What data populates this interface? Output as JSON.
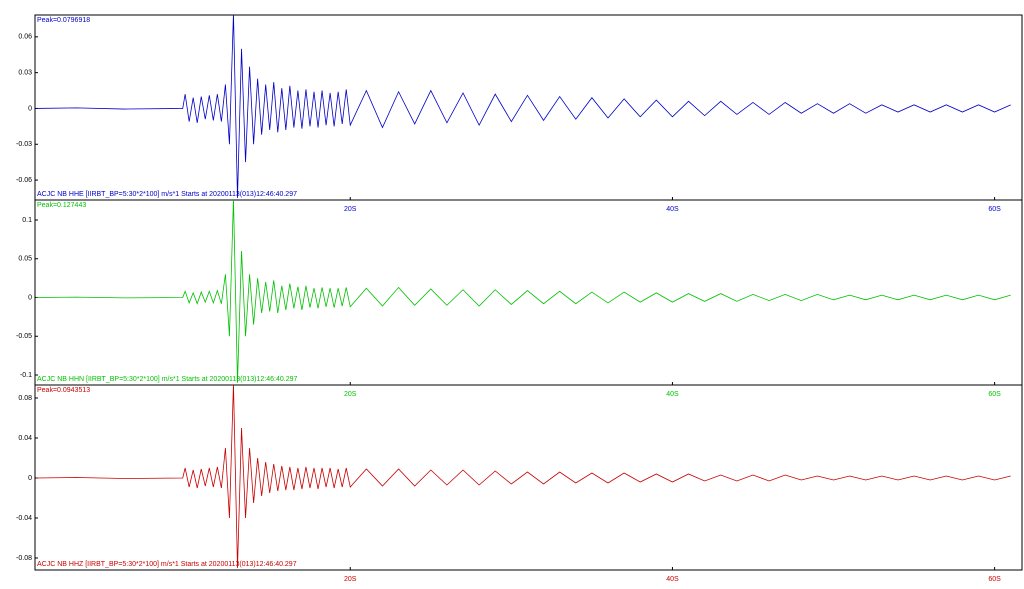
{
  "chart_data": [
    {
      "type": "line",
      "title": "Peak=0.0796918",
      "subtitle": "ACJC NB HHE  [IIRBT_BP=5:30*2*100] m/s*1 Starts at 20200113(013)12:46:40.297",
      "color": "#0000c8",
      "x": [
        0.5,
        3,
        6,
        9.6,
        9.75,
        10,
        10.25,
        10.5,
        10.75,
        11,
        11.25,
        11.5,
        11.75,
        12,
        12.25,
        12.5,
        12.75,
        13,
        13.25,
        13.5,
        13.75,
        14,
        14.25,
        14.5,
        14.75,
        15,
        15.25,
        15.5,
        15.75,
        16,
        16.25,
        16.5,
        16.75,
        17,
        17.25,
        17.5,
        17.75,
        18,
        18.25,
        18.5,
        18.75,
        19,
        19.25,
        19.5,
        19.75,
        20,
        21,
        22,
        23,
        24,
        25,
        26,
        27,
        28,
        29,
        30,
        31,
        32,
        33,
        34,
        35,
        36,
        37,
        38,
        39,
        40,
        41,
        42,
        43,
        44,
        45,
        46,
        47,
        48,
        49,
        50,
        51,
        52,
        53,
        54,
        55,
        56,
        57,
        58,
        59,
        60,
        61
      ],
      "values": [
        0,
        0.0005,
        -0.0005,
        0,
        0.012,
        -0.011,
        0.009,
        -0.012,
        0.01,
        -0.009,
        0.011,
        -0.01,
        0.012,
        -0.011,
        0.02,
        -0.03,
        0.0796918,
        -0.075,
        0.05,
        -0.045,
        0.035,
        -0.03,
        0.025,
        -0.022,
        0.02,
        -0.018,
        0.022,
        -0.02,
        0.017,
        -0.018,
        0.019,
        -0.016,
        0.015,
        -0.017,
        0.016,
        -0.015,
        0.014,
        -0.016,
        0.015,
        -0.014,
        0.013,
        -0.015,
        0.014,
        -0.013,
        0.016,
        -0.014,
        0.015,
        -0.016,
        0.014,
        -0.013,
        0.015,
        -0.012,
        0.013,
        -0.014,
        0.012,
        -0.011,
        0.011,
        -0.01,
        0.01,
        -0.009,
        0.009,
        -0.008,
        0.008,
        -0.007,
        0.007,
        -0.007,
        0.006,
        -0.006,
        0.006,
        -0.005,
        0.005,
        -0.005,
        0.005,
        -0.004,
        0.004,
        -0.004,
        0.004,
        -0.004,
        0.003,
        -0.003,
        0.003,
        -0.003,
        0.003,
        -0.003,
        0.003,
        -0.003,
        0.003
      ],
      "xlim": [
        0.43,
        61.7
      ],
      "xticks": [
        {
          "value": 20,
          "label": "20S"
        },
        {
          "value": 40,
          "label": "40S"
        },
        {
          "value": 60,
          "label": "60S"
        }
      ],
      "ylim": [
        -0.0767,
        0.0783
      ],
      "yticks": [
        -0.06,
        -0.03,
        0,
        0.03,
        0.06
      ]
    },
    {
      "type": "line",
      "title": "Peak=0.127443",
      "subtitle": "ACJC NB HHN  [IIRBT_BP=5:30*2*100] m/s*1 Starts at 20200113(013)12:46:40.297",
      "color": "#00c000",
      "x": [
        0.5,
        3,
        6,
        9.6,
        9.75,
        10,
        10.25,
        10.5,
        10.75,
        11,
        11.25,
        11.5,
        11.75,
        12,
        12.25,
        12.5,
        12.75,
        13,
        13.25,
        13.5,
        13.75,
        14,
        14.25,
        14.5,
        14.75,
        15,
        15.25,
        15.5,
        15.75,
        16,
        16.25,
        16.5,
        16.75,
        17,
        17.25,
        17.5,
        17.75,
        18,
        18.25,
        18.5,
        18.75,
        19,
        19.25,
        19.5,
        19.75,
        20,
        21,
        22,
        23,
        24,
        25,
        26,
        27,
        28,
        29,
        30,
        31,
        32,
        33,
        34,
        35,
        36,
        37,
        38,
        39,
        40,
        41,
        42,
        43,
        44,
        45,
        46,
        47,
        48,
        49,
        50,
        51,
        52,
        53,
        54,
        55,
        56,
        57,
        58,
        59,
        60,
        61
      ],
      "values": [
        0,
        0.0005,
        -0.0005,
        0,
        0.008,
        -0.007,
        0.006,
        -0.008,
        0.007,
        -0.006,
        0.008,
        -0.007,
        0.009,
        -0.008,
        0.03,
        -0.05,
        0.127443,
        -0.11,
        0.06,
        -0.05,
        0.03,
        -0.035,
        0.025,
        -0.02,
        0.02,
        -0.018,
        0.022,
        -0.02,
        0.015,
        -0.016,
        0.018,
        -0.014,
        0.014,
        -0.016,
        0.015,
        -0.013,
        0.012,
        -0.014,
        0.013,
        -0.012,
        0.012,
        -0.013,
        0.012,
        -0.011,
        0.013,
        -0.012,
        0.012,
        -0.011,
        0.013,
        -0.01,
        0.011,
        -0.01,
        0.01,
        -0.011,
        0.01,
        -0.009,
        0.009,
        -0.008,
        0.008,
        -0.008,
        0.007,
        -0.007,
        0.007,
        -0.006,
        0.006,
        -0.006,
        0.005,
        -0.005,
        0.005,
        -0.005,
        0.004,
        -0.004,
        0.004,
        -0.004,
        0.004,
        -0.003,
        0.003,
        -0.003,
        0.003,
        -0.003,
        0.003,
        -0.003,
        0.003,
        -0.003,
        0.003,
        -0.003,
        0.003
      ],
      "xlim": [
        0.43,
        61.7
      ],
      "xticks": [
        {
          "value": 20,
          "label": "20S"
        },
        {
          "value": 40,
          "label": "40S"
        },
        {
          "value": 60,
          "label": "60S"
        }
      ],
      "ylim": [
        -0.1129,
        0.1258
      ],
      "yticks": [
        -0.1,
        -0.05,
        0,
        0.05,
        0.1
      ]
    },
    {
      "type": "line",
      "title": "Peak=0.0943513",
      "subtitle": "ACJC NB HHZ  [IIRBT_BP=5:30*2*100] m/s*1 Starts at 20200113(013)12:46:40.297",
      "color": "#c80000",
      "x": [
        0.5,
        3,
        6,
        9.6,
        9.75,
        10,
        10.25,
        10.5,
        10.75,
        11,
        11.25,
        11.5,
        11.75,
        12,
        12.25,
        12.5,
        12.75,
        13,
        13.25,
        13.5,
        13.75,
        14,
        14.25,
        14.5,
        14.75,
        15,
        15.25,
        15.5,
        15.75,
        16,
        16.25,
        16.5,
        16.75,
        17,
        17.25,
        17.5,
        17.75,
        18,
        18.25,
        18.5,
        18.75,
        19,
        19.25,
        19.5,
        19.75,
        20,
        21,
        22,
        23,
        24,
        25,
        26,
        27,
        28,
        29,
        30,
        31,
        32,
        33,
        34,
        35,
        36,
        37,
        38,
        39,
        40,
        41,
        42,
        43,
        44,
        45,
        46,
        47,
        48,
        49,
        50,
        51,
        52,
        53,
        54,
        55,
        56,
        57,
        58,
        59,
        60,
        61
      ],
      "values": [
        0,
        0.0005,
        -0.0005,
        0,
        0.01,
        -0.009,
        0.008,
        -0.01,
        0.009,
        -0.008,
        0.01,
        -0.009,
        0.011,
        -0.01,
        0.03,
        -0.04,
        0.0943513,
        -0.09,
        0.05,
        -0.04,
        0.03,
        -0.025,
        0.02,
        -0.018,
        0.016,
        -0.015,
        0.014,
        -0.013,
        0.012,
        -0.012,
        0.011,
        -0.012,
        0.01,
        -0.011,
        0.011,
        -0.01,
        0.01,
        -0.011,
        0.01,
        -0.009,
        0.01,
        -0.01,
        0.009,
        -0.009,
        0.01,
        -0.009,
        0.009,
        -0.008,
        0.009,
        -0.008,
        0.008,
        -0.007,
        0.008,
        -0.007,
        0.007,
        -0.006,
        0.006,
        -0.006,
        0.006,
        -0.005,
        0.005,
        -0.005,
        0.005,
        -0.004,
        0.004,
        -0.004,
        0.004,
        -0.003,
        0.003,
        -0.003,
        0.003,
        -0.003,
        0.003,
        -0.002,
        0.002,
        -0.002,
        0.002,
        -0.002,
        0.002,
        -0.002,
        0.002,
        -0.002,
        0.002,
        -0.002,
        0.002,
        -0.002,
        0.002
      ],
      "xlim": [
        0.43,
        61.7
      ],
      "xticks": [
        {
          "value": 20,
          "label": "20S"
        },
        {
          "value": 40,
          "label": "40S"
        },
        {
          "value": 60,
          "label": "60S"
        }
      ],
      "ylim": [
        -0.092,
        0.093
      ],
      "yticks": [
        -0.08,
        -0.04,
        0,
        0.04,
        0.08
      ]
    }
  ]
}
